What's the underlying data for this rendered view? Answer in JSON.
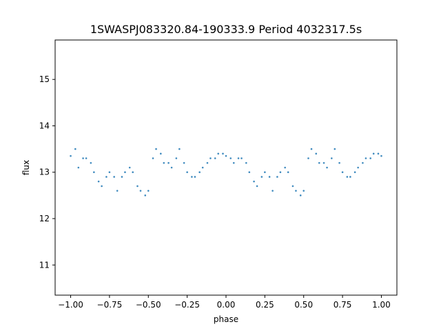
{
  "chart_data": {
    "type": "scatter",
    "title": "1SWASPJ083320.84-190333.9 Period 4032317.5s",
    "xlabel": "phase",
    "ylabel": "flux",
    "xlim": [
      -1.1,
      1.1
    ],
    "ylim": [
      10.35,
      15.85
    ],
    "grid": false,
    "legend": "none",
    "x_ticks": [
      -1.0,
      -0.75,
      -0.5,
      -0.25,
      0.0,
      0.25,
      0.5,
      0.75,
      1.0
    ],
    "x_tick_labels": [
      "−1.00",
      "−0.75",
      "−0.50",
      "−0.25",
      "0.00",
      "0.25",
      "0.50",
      "0.75",
      "1.00"
    ],
    "y_ticks": [
      11,
      12,
      13,
      14,
      15
    ],
    "y_tick_labels": [
      "11",
      "12",
      "13",
      "14",
      "15"
    ],
    "marker_color": "#1f77b4",
    "series": [
      {
        "x": [
          -1.0,
          -0.97,
          -0.95,
          -0.92,
          -0.9,
          -0.87,
          -0.85,
          -0.82,
          -0.8,
          -0.77,
          -0.75,
          -0.72,
          -0.7,
          -0.67,
          -0.65,
          -0.62,
          -0.6,
          -0.57,
          -0.55,
          -0.52,
          -0.5,
          -0.47,
          -0.45,
          -0.42,
          -0.4,
          -0.37,
          -0.35,
          -0.32,
          -0.3,
          -0.27,
          -0.25,
          -0.22,
          -0.2,
          -0.17,
          -0.15,
          -0.12,
          -0.1,
          -0.07,
          -0.05,
          -0.02,
          0.0,
          0.03,
          0.05,
          0.08,
          0.1,
          0.13,
          0.15,
          0.18,
          0.2,
          0.23,
          0.25,
          0.28,
          0.3,
          0.33,
          0.35,
          0.38,
          0.4,
          0.43,
          0.45,
          0.48,
          0.5,
          0.53,
          0.55,
          0.58,
          0.6,
          0.63,
          0.65,
          0.68,
          0.7,
          0.73,
          0.75,
          0.78,
          0.8,
          0.83,
          0.85,
          0.88,
          0.9,
          0.93,
          0.95,
          0.98,
          1.0
        ],
        "y": [
          13.35,
          13.5,
          13.1,
          13.3,
          13.3,
          13.2,
          13.0,
          12.8,
          12.7,
          12.9,
          13.0,
          12.9,
          12.6,
          12.9,
          13.0,
          13.1,
          13.0,
          12.7,
          12.6,
          12.5,
          12.6,
          13.3,
          13.5,
          13.4,
          13.2,
          13.2,
          13.1,
          13.3,
          13.5,
          13.2,
          13.0,
          12.9,
          12.9,
          13.0,
          13.1,
          13.2,
          13.3,
          13.3,
          13.4,
          13.4,
          13.35,
          13.3,
          13.2,
          13.3,
          13.3,
          13.2,
          13.0,
          12.8,
          12.7,
          12.9,
          13.0,
          12.9,
          12.6,
          12.9,
          13.0,
          13.1,
          13.0,
          12.7,
          12.6,
          12.5,
          12.6,
          13.3,
          13.5,
          13.4,
          13.2,
          13.2,
          13.1,
          13.3,
          13.5,
          13.2,
          13.0,
          12.9,
          12.9,
          13.0,
          13.1,
          13.2,
          13.3,
          13.3,
          13.4,
          13.4,
          13.35
        ]
      }
    ]
  }
}
